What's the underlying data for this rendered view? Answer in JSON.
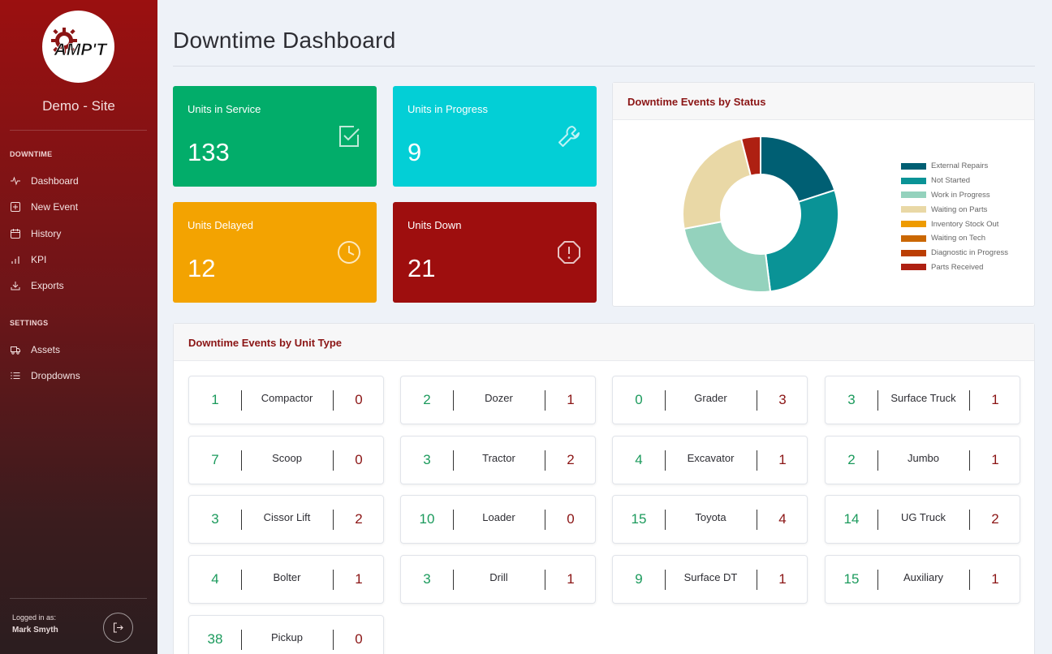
{
  "sidebar": {
    "logo_text": "AMP'T",
    "site_name": "Demo - Site",
    "sections": [
      {
        "heading": "DOWNTIME",
        "items": [
          {
            "label": "Dashboard",
            "icon": "activity-icon"
          },
          {
            "label": "New Event",
            "icon": "plus-square-icon"
          },
          {
            "label": "History",
            "icon": "calendar-icon"
          },
          {
            "label": "KPI",
            "icon": "bar-chart-icon"
          },
          {
            "label": "Exports",
            "icon": "download-icon"
          }
        ]
      },
      {
        "heading": "SETTINGS",
        "items": [
          {
            "label": "Assets",
            "icon": "truck-icon"
          },
          {
            "label": "Dropdowns",
            "icon": "list-icon"
          }
        ]
      }
    ],
    "logged_in_label": "Logged in as:",
    "user_name": "Mark Smyth"
  },
  "page": {
    "title": "Downtime Dashboard"
  },
  "stats": [
    {
      "label": "Units in Service",
      "value": "133",
      "color": "#02ad6a",
      "icon": "check-square-icon"
    },
    {
      "label": "Units in Progress",
      "value": "9",
      "color": "#03cfd6",
      "icon": "wrench-icon"
    },
    {
      "label": "Units Delayed",
      "value": "12",
      "color": "#f3a301",
      "icon": "clock-icon"
    },
    {
      "label": "Units Down",
      "value": "21",
      "color": "#9e0e0e",
      "icon": "alert-octagon-icon"
    }
  ],
  "status_panel": {
    "title": "Downtime Events by Status"
  },
  "chart_data": {
    "type": "pie",
    "donut": true,
    "title": "Downtime Events by Status",
    "categories": [
      "External Repairs",
      "Not Started",
      "Work in Progress",
      "Waiting on Parts",
      "Inventory Stock Out",
      "Waiting on Tech",
      "Diagnostic in Progress",
      "Parts Received"
    ],
    "values": [
      5,
      7,
      6,
      6,
      0,
      0,
      0,
      1
    ],
    "colors": [
      "#005f73",
      "#0a9396",
      "#94d2bd",
      "#e9d8a6",
      "#ee9b00",
      "#ca6702",
      "#bb3e03",
      "#ae2012"
    ],
    "legend": "right"
  },
  "unit_panel": {
    "title": "Downtime Events by Unit Type",
    "units": [
      {
        "name": "Compactor",
        "left": "1",
        "right": "0"
      },
      {
        "name": "Dozer",
        "left": "2",
        "right": "1"
      },
      {
        "name": "Grader",
        "left": "0",
        "right": "3"
      },
      {
        "name": "Surface Truck",
        "left": "3",
        "right": "1"
      },
      {
        "name": "Scoop",
        "left": "7",
        "right": "0"
      },
      {
        "name": "Tractor",
        "left": "3",
        "right": "2"
      },
      {
        "name": "Excavator",
        "left": "4",
        "right": "1"
      },
      {
        "name": "Jumbo",
        "left": "2",
        "right": "1"
      },
      {
        "name": "Cissor Lift",
        "left": "3",
        "right": "2"
      },
      {
        "name": "Loader",
        "left": "10",
        "right": "0"
      },
      {
        "name": "Toyota",
        "left": "15",
        "right": "4"
      },
      {
        "name": "UG Truck",
        "left": "14",
        "right": "2"
      },
      {
        "name": "Bolter",
        "left": "4",
        "right": "1"
      },
      {
        "name": "Drill",
        "left": "3",
        "right": "1"
      },
      {
        "name": "Surface DT",
        "left": "9",
        "right": "1"
      },
      {
        "name": "Auxiliary",
        "left": "15",
        "right": "1"
      },
      {
        "name": "Pickup",
        "left": "38",
        "right": "0"
      }
    ]
  }
}
